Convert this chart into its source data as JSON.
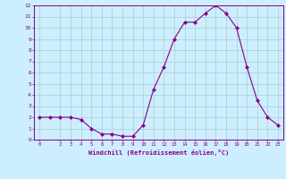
{
  "x": [
    0,
    1,
    2,
    3,
    4,
    5,
    6,
    7,
    8,
    9,
    10,
    11,
    12,
    13,
    14,
    15,
    16,
    17,
    18,
    19,
    20,
    21,
    22,
    23
  ],
  "y": [
    2,
    2,
    2,
    2,
    1.8,
    1,
    0.5,
    0.5,
    0.3,
    0.3,
    1.3,
    4.5,
    6.5,
    9,
    10.5,
    10.5,
    11.3,
    12,
    11.3,
    10,
    6.5,
    3.5,
    2,
    1.3
  ],
  "line_color": "#880088",
  "marker": "D",
  "marker_size": 2,
  "bg_color": "#cceeff",
  "grid_color": "#aacccc",
  "tick_color": "#880088",
  "label_color": "#880088",
  "xlabel": "Windchill (Refroidissement éolien,°C)",
  "xlim": [
    -0.5,
    23.5
  ],
  "ylim": [
    0,
    12
  ],
  "xticks": [
    0,
    2,
    3,
    4,
    5,
    6,
    7,
    8,
    9,
    10,
    11,
    12,
    13,
    14,
    15,
    16,
    17,
    18,
    19,
    20,
    21,
    22,
    23
  ],
  "yticks": [
    0,
    1,
    2,
    3,
    4,
    5,
    6,
    7,
    8,
    9,
    10,
    11,
    12
  ]
}
